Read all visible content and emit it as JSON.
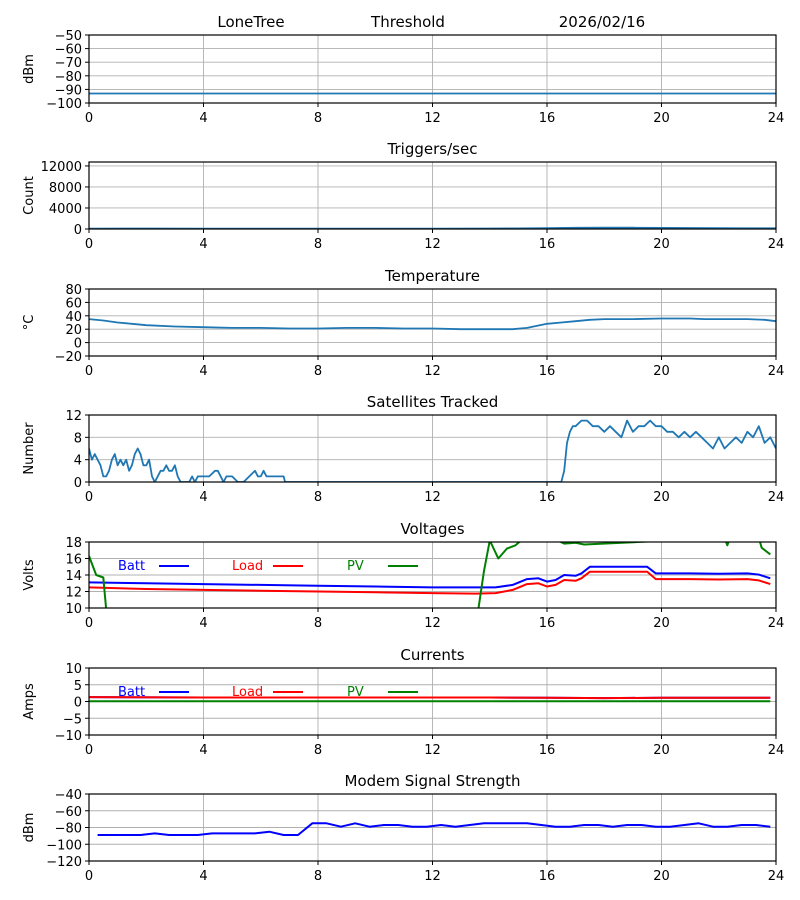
{
  "header": {
    "station": "LoneTree",
    "mode": "Threshold",
    "date": "2026/02/16"
  },
  "chart_data": [
    {
      "id": "threshold",
      "type": "line",
      "title": "",
      "xlabel": "",
      "ylabel": "dBm",
      "xlim": [
        0,
        24
      ],
      "ylim": [
        -100,
        -50
      ],
      "xticks": [
        0,
        4,
        8,
        12,
        16,
        20,
        24
      ],
      "yticks": [
        -100,
        -90,
        -80,
        -70,
        -60,
        -50
      ],
      "ytick_labels": [
        "−100",
        "−90",
        "−80",
        "−70",
        "−60",
        "−50"
      ],
      "grid": true,
      "series": [
        {
          "name": "Threshold",
          "color": "#1f77b4",
          "x": [
            0,
            24
          ],
          "y": [
            -93,
            -93
          ]
        }
      ]
    },
    {
      "id": "triggers",
      "type": "line",
      "title": "Triggers/sec",
      "xlabel": "",
      "ylabel": "Count",
      "xlim": [
        0,
        24
      ],
      "ylim": [
        0,
        12750
      ],
      "xticks": [
        0,
        4,
        8,
        12,
        16,
        20,
        24
      ],
      "yticks": [
        0,
        4000,
        8000,
        12000
      ],
      "ytick_labels": [
        "0",
        "4000",
        "8000",
        "12000"
      ],
      "grid": true,
      "series": [
        {
          "name": "Triggers",
          "color": "#1f77b4",
          "x": [
            0,
            2,
            4,
            6,
            8,
            10,
            12,
            14,
            15,
            16,
            17,
            18,
            19,
            20,
            21,
            22,
            23,
            24
          ],
          "y": [
            80,
            90,
            80,
            85,
            80,
            80,
            80,
            90,
            120,
            180,
            220,
            260,
            240,
            200,
            190,
            150,
            140,
            130
          ]
        }
      ]
    },
    {
      "id": "temperature",
      "type": "line",
      "title": "Temperature",
      "xlabel": "",
      "ylabel": "°C",
      "xlim": [
        0,
        24
      ],
      "ylim": [
        -20,
        80
      ],
      "xticks": [
        0,
        4,
        8,
        12,
        16,
        20,
        24
      ],
      "yticks": [
        -20,
        0,
        20,
        40,
        60,
        80
      ],
      "ytick_labels": [
        "−20",
        "0",
        "20",
        "40",
        "60",
        "80"
      ],
      "grid": true,
      "series": [
        {
          "name": "Temperature",
          "color": "#1f77b4",
          "x": [
            0,
            0.5,
            1,
            1.5,
            2,
            3,
            4,
            5,
            6,
            7,
            8,
            9,
            10,
            11,
            12,
            13,
            14,
            14.8,
            15.3,
            16,
            16.5,
            17,
            17.5,
            18,
            19,
            20,
            21,
            21.5,
            22,
            23,
            23.6,
            24
          ],
          "y": [
            35,
            33,
            30,
            28,
            26,
            24,
            23,
            22,
            22,
            21,
            21,
            22,
            22,
            21,
            21,
            20,
            20,
            20,
            22,
            28,
            30,
            32,
            34,
            35,
            35,
            36,
            36,
            35,
            35,
            35,
            34,
            32
          ]
        }
      ]
    },
    {
      "id": "satellites",
      "type": "line",
      "title": "Satellites Tracked",
      "xlabel": "",
      "ylabel": "Number",
      "xlim": [
        0,
        24
      ],
      "ylim": [
        0,
        12
      ],
      "xticks": [
        0,
        4,
        8,
        12,
        16,
        20,
        24
      ],
      "yticks": [
        0,
        4,
        8,
        12
      ],
      "ytick_labels": [
        "0",
        "4",
        "8",
        "12"
      ],
      "grid": true,
      "series": [
        {
          "name": "Satellites",
          "color": "#1f77b4",
          "x": [
            0,
            0.1,
            0.2,
            0.3,
            0.4,
            0.5,
            0.6,
            0.7,
            0.8,
            0.9,
            1.0,
            1.1,
            1.2,
            1.3,
            1.4,
            1.5,
            1.6,
            1.7,
            1.8,
            1.9,
            2.0,
            2.1,
            2.2,
            2.3,
            2.4,
            2.5,
            2.6,
            2.7,
            2.8,
            2.9,
            3.0,
            3.1,
            3.2,
            3.3,
            3.4,
            3.5,
            3.6,
            3.7,
            3.8,
            3.9,
            4.0,
            4.2,
            4.4,
            4.5,
            4.6,
            4.7,
            4.8,
            4.9,
            5.0,
            5.2,
            5.4,
            5.6,
            5.8,
            5.9,
            6.0,
            6.1,
            6.2,
            6.4,
            6.6,
            6.8,
            6.85,
            7.0,
            10,
            14,
            16.5,
            16.6,
            16.7,
            16.8,
            16.9,
            17.0,
            17.2,
            17.4,
            17.6,
            17.8,
            18.0,
            18.2,
            18.4,
            18.6,
            18.8,
            19.0,
            19.2,
            19.4,
            19.6,
            19.8,
            20.0,
            20.2,
            20.4,
            20.6,
            20.8,
            21.0,
            21.2,
            21.4,
            21.6,
            21.8,
            22.0,
            22.2,
            22.4,
            22.6,
            22.8,
            23.0,
            23.2,
            23.4,
            23.6,
            23.8,
            24.0
          ],
          "y": [
            6,
            4,
            5,
            4,
            3,
            1,
            1,
            2,
            4,
            5,
            3,
            4,
            3,
            4,
            2,
            3,
            5,
            6,
            5,
            3,
            3,
            4,
            1,
            0,
            1,
            2,
            2,
            3,
            2,
            2,
            3,
            1,
            0,
            0,
            0,
            0,
            1,
            0,
            1,
            1,
            1,
            1,
            2,
            2,
            1,
            0,
            1,
            1,
            1,
            0,
            0,
            1,
            2,
            1,
            1,
            2,
            1,
            1,
            1,
            1,
            0,
            0,
            0,
            0,
            0,
            2,
            7,
            9,
            10,
            10,
            11,
            11,
            10,
            10,
            9,
            10,
            9,
            8,
            11,
            9,
            10,
            10,
            11,
            10,
            10,
            9,
            9,
            8,
            9,
            8,
            9,
            8,
            7,
            6,
            8,
            6,
            7,
            8,
            7,
            9,
            8,
            10,
            7,
            8,
            6
          ]
        }
      ]
    },
    {
      "id": "voltages",
      "type": "line",
      "title": "Voltages",
      "xlabel": "",
      "ylabel": "Volts",
      "xlim": [
        0,
        24
      ],
      "ylim": [
        10,
        18
      ],
      "xticks": [
        0,
        4,
        8,
        12,
        16,
        20,
        24
      ],
      "yticks": [
        10,
        12,
        14,
        16,
        18
      ],
      "ytick_labels": [
        "10",
        "12",
        "14",
        "16",
        "18"
      ],
      "grid": true,
      "legend": {
        "placement": "top-left",
        "entries": [
          "Batt",
          "Load",
          "PV"
        ]
      },
      "series": [
        {
          "name": "Batt",
          "color": "#0000ff",
          "x": [
            0,
            2,
            4,
            6,
            8,
            10,
            12,
            13.5,
            14.2,
            14.8,
            15.3,
            15.7,
            16,
            16.3,
            16.6,
            17,
            17.2,
            17.5,
            18.5,
            19.5,
            19.8,
            21,
            22,
            23,
            23.4,
            23.8
          ],
          "y": [
            13.1,
            13.0,
            12.9,
            12.8,
            12.7,
            12.6,
            12.5,
            12.5,
            12.5,
            12.8,
            13.5,
            13.6,
            13.2,
            13.4,
            14.0,
            13.9,
            14.2,
            15.0,
            15.0,
            15.0,
            14.2,
            14.2,
            14.15,
            14.2,
            14.05,
            13.6
          ]
        },
        {
          "name": "Load",
          "color": "#ff0000",
          "x": [
            0,
            2,
            4,
            6,
            8,
            10,
            12,
            13.5,
            14.2,
            14.8,
            15.3,
            15.7,
            16,
            16.3,
            16.6,
            17,
            17.2,
            17.5,
            18.5,
            19.5,
            19.8,
            21,
            22,
            23,
            23.4,
            23.8
          ],
          "y": [
            12.5,
            12.3,
            12.2,
            12.1,
            12.0,
            11.9,
            11.8,
            11.75,
            11.8,
            12.2,
            12.9,
            13.0,
            12.6,
            12.8,
            13.4,
            13.3,
            13.6,
            14.4,
            14.4,
            14.4,
            13.5,
            13.5,
            13.45,
            13.5,
            13.35,
            12.9
          ]
        },
        {
          "name": "PV",
          "color": "#008000",
          "x": [
            0,
            0.25,
            0.5,
            0.6,
            13.6,
            13.8,
            14.0,
            14.3,
            14.6,
            14.9,
            15.2,
            15.5,
            16.0,
            16.3,
            16.6,
            17.0,
            17.3,
            22.2,
            22.3,
            22.4,
            23.4,
            23.5,
            23.8
          ],
          "y": [
            16.3,
            14.0,
            13.7,
            9.8,
            9.8,
            14.5,
            18.2,
            16.0,
            17.2,
            17.6,
            18.5,
            18.3,
            18.4,
            18.3,
            17.8,
            17.9,
            17.7,
            18.5,
            17.6,
            18.5,
            18.5,
            17.3,
            16.5
          ]
        }
      ]
    },
    {
      "id": "currents",
      "type": "line",
      "title": "Currents",
      "xlabel": "",
      "ylabel": "Amps",
      "xlim": [
        0,
        24
      ],
      "ylim": [
        -10,
        10
      ],
      "xticks": [
        0,
        4,
        8,
        12,
        16,
        20,
        24
      ],
      "yticks": [
        -10,
        -5,
        0,
        5,
        10
      ],
      "ytick_labels": [
        "−10",
        "−5",
        "0",
        "5",
        "10"
      ],
      "grid": true,
      "legend": {
        "placement": "top-left",
        "entries": [
          "Batt",
          "Load",
          "PV"
        ]
      },
      "series": [
        {
          "name": "Batt",
          "color": "#0000ff",
          "x": [
            0,
            4,
            8,
            12,
            14,
            16,
            18,
            20,
            23.8
          ],
          "y": [
            1.3,
            1.2,
            1.2,
            1.2,
            1.2,
            1.1,
            1.0,
            1.1,
            1.1
          ]
        },
        {
          "name": "Load",
          "color": "#ff0000",
          "x": [
            0,
            4,
            8,
            12,
            14,
            16,
            18,
            20,
            23.8
          ],
          "y": [
            1.3,
            1.2,
            1.2,
            1.2,
            1.2,
            1.1,
            1.0,
            1.1,
            1.1
          ]
        },
        {
          "name": "PV",
          "color": "#008000",
          "x": [
            0,
            23.8
          ],
          "y": [
            0.1,
            0.1
          ]
        }
      ]
    },
    {
      "id": "modem",
      "type": "line",
      "title": "Modem Signal Strength",
      "xlabel": "",
      "ylabel": "dBm",
      "xlim": [
        0,
        24
      ],
      "ylim": [
        -120,
        -40
      ],
      "xticks": [
        0,
        4,
        8,
        12,
        16,
        20,
        24
      ],
      "yticks": [
        -120,
        -100,
        -80,
        -60,
        -40
      ],
      "ytick_labels": [
        "−120",
        "−100",
        "−80",
        "−60",
        "−40"
      ],
      "grid": true,
      "series": [
        {
          "name": "Modem",
          "color": "#0000ff",
          "x": [
            0.3,
            0.8,
            1.3,
            1.8,
            2.3,
            2.8,
            3.3,
            3.8,
            4.3,
            4.8,
            5.3,
            5.8,
            6.3,
            6.8,
            7.3,
            7.8,
            8.3,
            8.8,
            9.3,
            9.8,
            10.3,
            10.8,
            11.3,
            11.8,
            12.3,
            12.8,
            13.3,
            13.8,
            14.3,
            14.8,
            15.3,
            15.8,
            16.3,
            16.8,
            17.3,
            17.8,
            18.3,
            18.8,
            19.3,
            19.8,
            20.3,
            20.8,
            21.3,
            21.8,
            22.3,
            22.8,
            23.3,
            23.8
          ],
          "y": [
            -89,
            -89,
            -89,
            -89,
            -87,
            -89,
            -89,
            -89,
            -87,
            -87,
            -87,
            -87,
            -85,
            -89,
            -89,
            -75,
            -75,
            -79,
            -75,
            -79,
            -77,
            -77,
            -79,
            -79,
            -77,
            -79,
            -77,
            -75,
            -75,
            -75,
            -75,
            -77,
            -79,
            -79,
            -77,
            -77,
            -79,
            -77,
            -77,
            -79,
            -79,
            -77,
            -75,
            -79,
            -79,
            -77,
            -77,
            -79
          ]
        }
      ]
    }
  ]
}
